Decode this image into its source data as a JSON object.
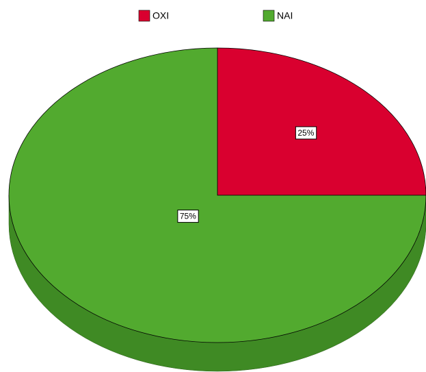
{
  "chart_data": {
    "type": "pie",
    "categories": [
      "OXI",
      "NAI"
    ],
    "values": [
      25,
      75
    ],
    "value_labels": [
      "25%",
      "75%"
    ],
    "colors": [
      "#d9002f",
      "#52aa2f"
    ],
    "side_colors": [
      "#a80024",
      "#3f8a24"
    ],
    "legend": "top"
  }
}
